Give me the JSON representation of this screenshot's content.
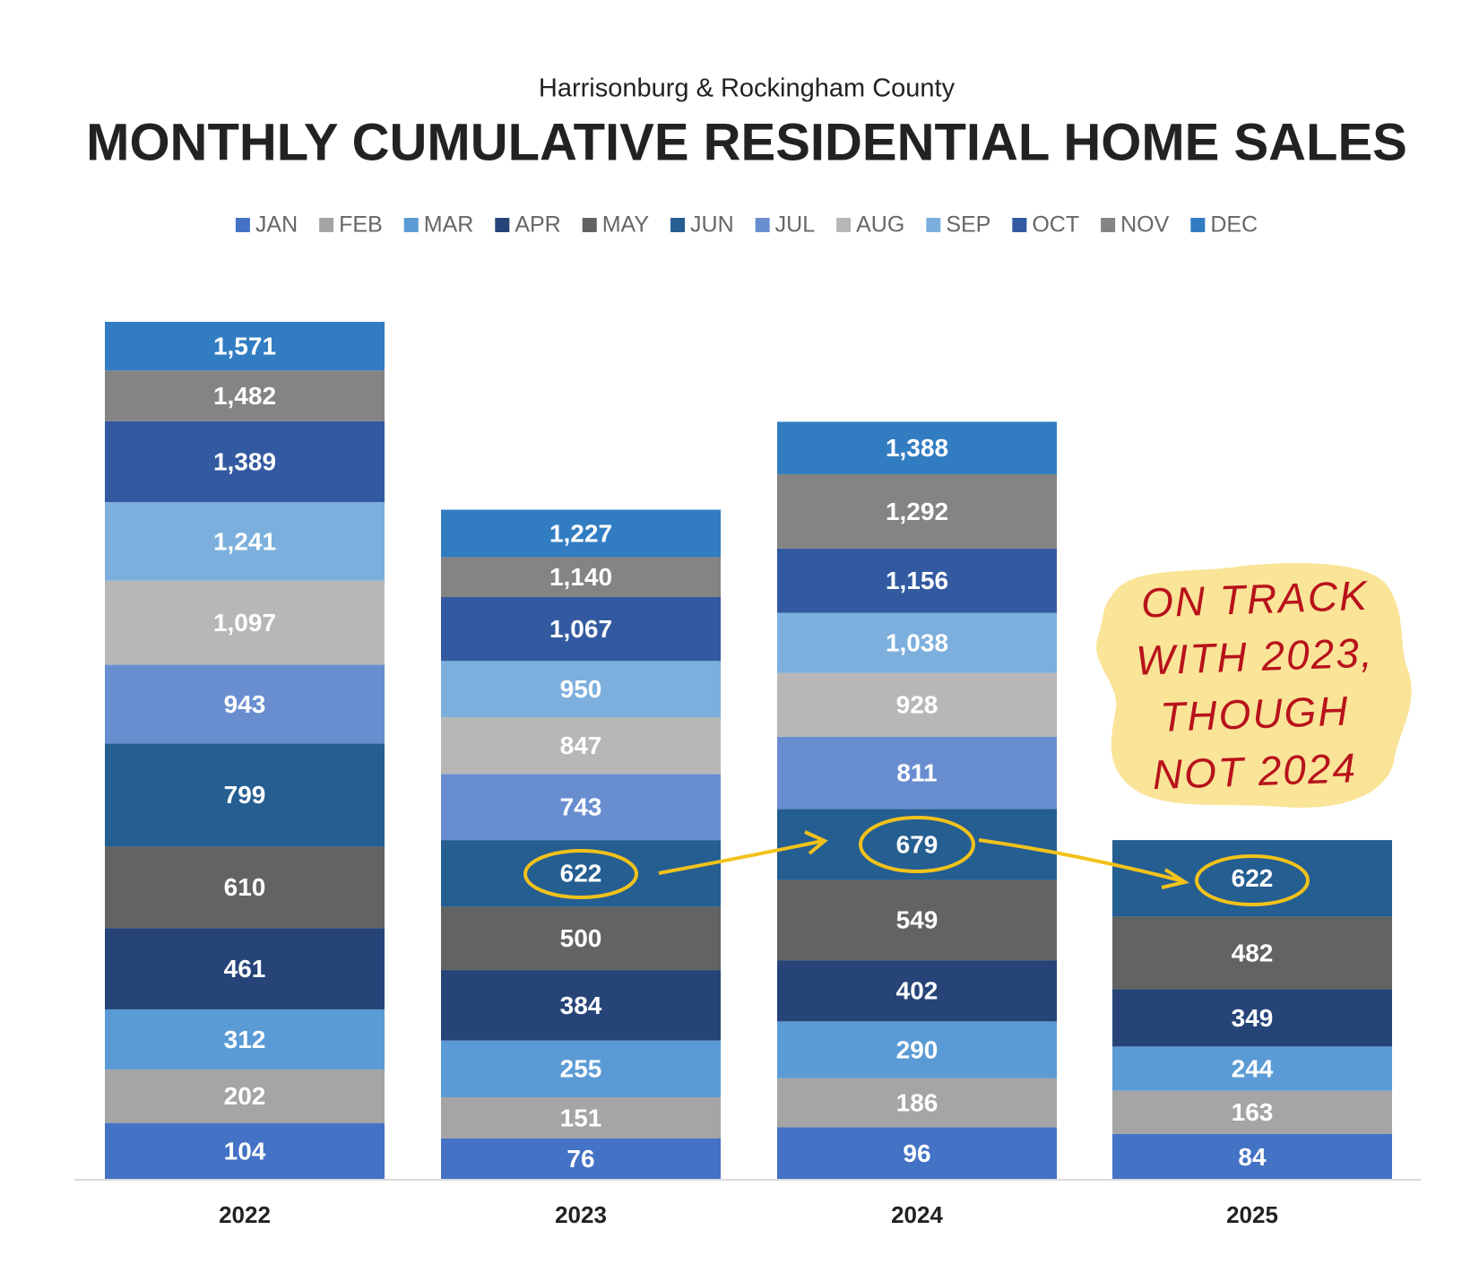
{
  "chart_data": {
    "type": "cumulative-bar",
    "subtitle": "Harrisonburg & Rockingham County",
    "title": "MONTHLY CUMULATIVE RESIDENTIAL HOME SALES",
    "categories": [
      "2022",
      "2023",
      "2024",
      "2025"
    ],
    "series": [
      {
        "name": "JAN",
        "color": "#4472c4",
        "values": [
          104,
          76,
          96,
          84
        ]
      },
      {
        "name": "FEB",
        "color": "#a5a5a5",
        "values": [
          202,
          151,
          186,
          163
        ]
      },
      {
        "name": "MAR",
        "color": "#5b9bd5",
        "values": [
          312,
          255,
          290,
          244
        ]
      },
      {
        "name": "APR",
        "color": "#264478",
        "values": [
          461,
          384,
          402,
          349
        ]
      },
      {
        "name": "MAY",
        "color": "#636363",
        "values": [
          610,
          500,
          549,
          482
        ]
      },
      {
        "name": "JUN",
        "color": "#255e91",
        "values": [
          799,
          622,
          679,
          622
        ]
      },
      {
        "name": "JUL",
        "color": "#698ed0",
        "values": [
          943,
          743,
          811,
          null
        ]
      },
      {
        "name": "AUG",
        "color": "#b7b7b7",
        "values": [
          1097,
          847,
          928,
          null
        ],
        "value_labels": [
          "1,097",
          "847",
          "928",
          null
        ]
      },
      {
        "name": "SEP",
        "color": "#7cafdd",
        "values": [
          1241,
          950,
          1038,
          null
        ],
        "value_labels": [
          "1,241",
          "950",
          "1,038",
          null
        ]
      },
      {
        "name": "OCT",
        "color": "#335aa1",
        "values": [
          1389,
          1067,
          1156,
          null
        ],
        "value_labels": [
          "1,389",
          "1,067",
          "1,156",
          null
        ]
      },
      {
        "name": "NOV",
        "color": "#848484",
        "values": [
          1482,
          1140,
          1292,
          null
        ],
        "value_labels": [
          "1,482",
          "1,140",
          "1,292",
          null
        ]
      },
      {
        "name": "DEC",
        "color": "#327dc2",
        "values": [
          1571,
          1227,
          1388,
          null
        ],
        "value_labels": [
          "1,571",
          "1,227",
          "1,388",
          null
        ]
      }
    ],
    "annotation": [
      "ON TRACK",
      "WITH 2023,",
      "THOUGH",
      "NOT 2024"
    ]
  }
}
